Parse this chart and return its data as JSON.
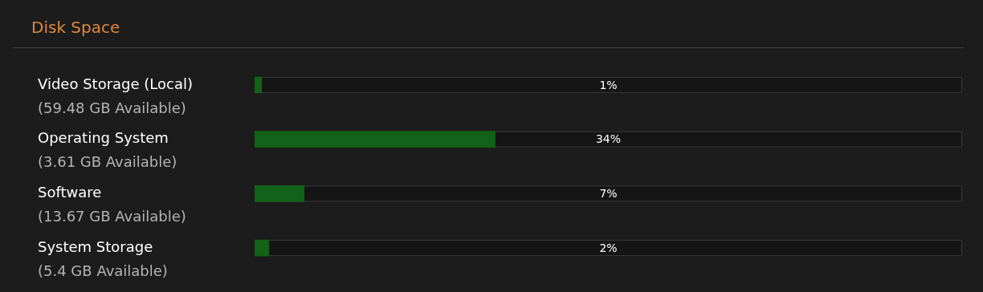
{
  "chart_data": {
    "type": "bar",
    "orientation": "horizontal",
    "title": "Disk Space",
    "categories": [
      "Video Storage (Local)",
      "Operating System",
      "Software",
      "System Storage"
    ],
    "values": [
      1,
      34,
      7,
      2
    ],
    "color": "#136219",
    "value_labels": [
      "1%",
      "34%",
      "7%",
      "2%"
    ],
    "xlim": [
      0,
      100
    ],
    "tick_labels": false,
    "annotations": [
      "(59.48 GB Available)",
      "(3.61 GB Available)",
      "(13.67 GB Available)",
      "(5.4 GB Available)"
    ]
  }
}
